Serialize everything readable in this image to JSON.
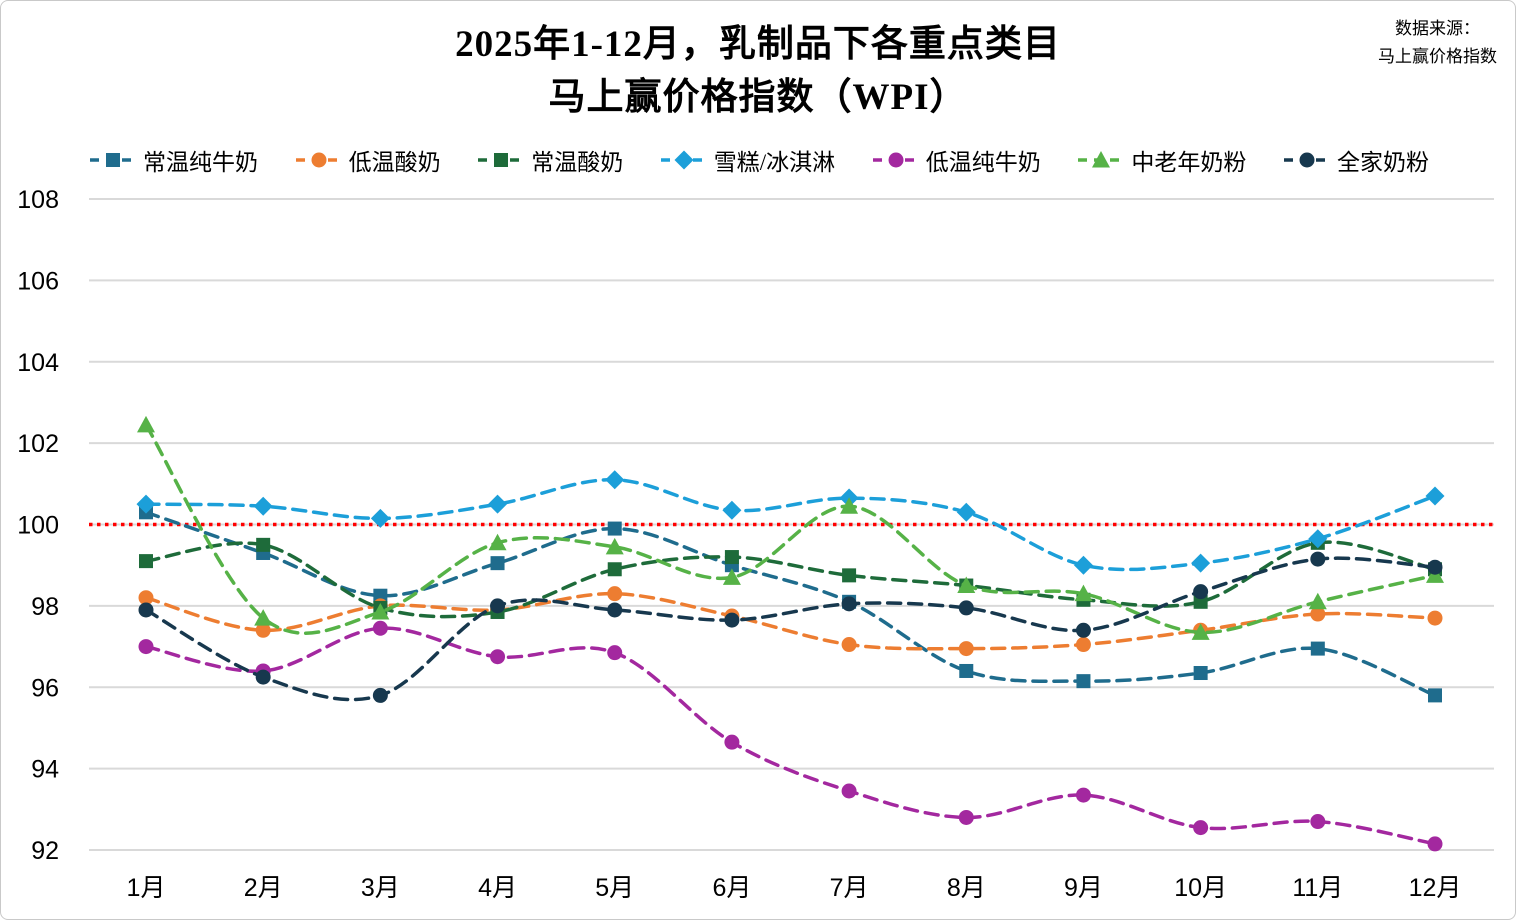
{
  "title": {
    "line1": "2025年1-12月，乳制品下各重点类目",
    "line2": "马上赢价格指数（WPI）"
  },
  "source": {
    "line1": "数据来源：",
    "line2": "马上赢价格指数"
  },
  "colors": {
    "grid": "#d9d9d9",
    "reference_line": "#ff0000",
    "background": "#ffffff"
  },
  "chart_data": {
    "type": "line",
    "title": "2025年1-12月，乳制品下各重点类目 马上赢价格指数（WPI）",
    "x": [
      "1月",
      "2月",
      "3月",
      "4月",
      "5月",
      "6月",
      "7月",
      "8月",
      "9月",
      "10月",
      "11月",
      "12月"
    ],
    "ylim": [
      91,
      109
    ],
    "yticks": [
      92,
      94,
      96,
      98,
      100,
      102,
      104,
      106,
      108
    ],
    "grid": true,
    "legend_position": "top",
    "line_style": "dashed",
    "reference_line": {
      "value": 100,
      "color": "#ff0000",
      "style": "dotted"
    },
    "series": [
      {
        "name": "常温纯牛奶",
        "color": "#1f6c8d",
        "marker": "square",
        "values": [
          100.3,
          99.3,
          98.25,
          99.05,
          99.9,
          99.0,
          98.1,
          96.4,
          96.15,
          96.35,
          96.95,
          95.8
        ]
      },
      {
        "name": "低温酸奶",
        "color": "#ed7d31",
        "marker": "circle",
        "values": [
          98.2,
          97.4,
          98.0,
          97.9,
          98.3,
          97.75,
          97.05,
          96.95,
          97.05,
          97.4,
          97.8,
          97.7
        ]
      },
      {
        "name": "常温酸奶",
        "color": "#1e6b3a",
        "marker": "square",
        "values": [
          99.1,
          99.5,
          97.95,
          97.85,
          98.9,
          99.2,
          98.75,
          98.5,
          98.15,
          98.1,
          99.55,
          98.9
        ]
      },
      {
        "name": "雪糕/冰淇淋",
        "color": "#1c9fd9",
        "marker": "diamond",
        "values": [
          100.5,
          100.45,
          100.15,
          100.5,
          101.1,
          100.35,
          100.65,
          100.3,
          99.0,
          99.05,
          99.65,
          100.7
        ]
      },
      {
        "name": "低温纯牛奶",
        "color": "#a3289f",
        "marker": "circle",
        "values": [
          97.0,
          96.4,
          97.45,
          96.75,
          96.85,
          94.65,
          93.45,
          92.8,
          93.35,
          92.55,
          92.7,
          92.15
        ]
      },
      {
        "name": "中老年奶粉",
        "color": "#56b247",
        "marker": "triangle",
        "values": [
          102.45,
          97.7,
          97.85,
          99.55,
          99.45,
          98.7,
          100.45,
          98.5,
          98.3,
          97.35,
          98.1,
          98.75
        ]
      },
      {
        "name": "全家奶粉",
        "color": "#17384e",
        "marker": "circle",
        "values": [
          97.9,
          96.25,
          95.8,
          98.0,
          97.9,
          97.65,
          98.05,
          97.95,
          97.4,
          98.35,
          99.15,
          98.95
        ]
      }
    ]
  }
}
